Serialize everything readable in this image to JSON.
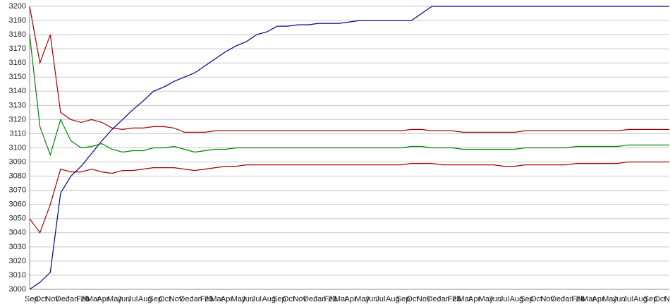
{
  "chart_data": {
    "type": "line",
    "categories": [
      "Sep",
      "Oct",
      "Nov",
      "Dec",
      "Jan 20",
      "Feb",
      "Mar",
      "Apr",
      "May",
      "Jun",
      "Jul",
      "Aug",
      "Sep",
      "Oct",
      "Nov",
      "Dec",
      "Jan 21",
      "Feb",
      "Mar",
      "Apr",
      "May",
      "Jun",
      "Jul",
      "Aug",
      "Sep",
      "Oct",
      "Nov",
      "Dec",
      "Jan 22",
      "Feb",
      "Mar",
      "Apr",
      "May",
      "Jun",
      "Jul",
      "Aug",
      "Sep",
      "Oct",
      "Nov",
      "Dec",
      "Jan 23",
      "Feb",
      "Mar",
      "Apr",
      "May",
      "Jun",
      "Jul",
      "Aug",
      "Sep",
      "Oct",
      "Nov",
      "Dec",
      "Jan 24",
      "Feb",
      "Mar",
      "Apr",
      "May",
      "Jun",
      "Jul",
      "Aug",
      "Sep",
      "Oct",
      "Nov"
    ],
    "series": [
      {
        "color": "#00008b",
        "values": [
          3000,
          3005,
          3012,
          3068,
          3080,
          3087,
          3096,
          3105,
          3113,
          3120,
          3127,
          3133,
          3140,
          3143,
          3147,
          3150,
          3153,
          3158,
          3163,
          3168,
          3172,
          3175,
          3180,
          3182,
          3186,
          3186,
          3187,
          3187,
          3188,
          3188,
          3188,
          3189,
          3190,
          3190,
          3190,
          3190,
          3190,
          3190,
          3195,
          3200,
          3200,
          3200,
          3200,
          3200,
          3200,
          3200,
          3200,
          3200,
          3200,
          3200,
          3200,
          3200,
          3200,
          3200,
          3200,
          3200,
          3200,
          3200,
          3200,
          3200,
          3200,
          3200,
          3200
        ]
      },
      {
        "color": "#008000",
        "values": [
          3180,
          3115,
          3095,
          3120,
          3105,
          3100,
          3101,
          3103,
          3099,
          3097,
          3098,
          3098,
          3100,
          3100,
          3101,
          3099,
          3097,
          3098,
          3099,
          3099,
          3100,
          3100,
          3100,
          3100,
          3100,
          3100,
          3100,
          3100,
          3100,
          3100,
          3100,
          3100,
          3100,
          3100,
          3100,
          3100,
          3100,
          3101,
          3101,
          3100,
          3100,
          3100,
          3099,
          3099,
          3099,
          3099,
          3099,
          3099,
          3100,
          3100,
          3100,
          3100,
          3100,
          3101,
          3101,
          3101,
          3101,
          3101,
          3102,
          3102,
          3102,
          3102,
          3102
        ]
      },
      {
        "color": "#a00000",
        "values": [
          3200,
          3160,
          3180,
          3125,
          3120,
          3118,
          3120,
          3118,
          3114,
          3113,
          3114,
          3114,
          3115,
          3115,
          3114,
          3111,
          3111,
          3111,
          3112,
          3112,
          3112,
          3112,
          3112,
          3112,
          3112,
          3112,
          3112,
          3112,
          3112,
          3112,
          3112,
          3112,
          3112,
          3112,
          3112,
          3112,
          3112,
          3113,
          3113,
          3112,
          3112,
          3112,
          3111,
          3111,
          3111,
          3111,
          3111,
          3111,
          3112,
          3112,
          3112,
          3112,
          3112,
          3112,
          3112,
          3112,
          3112,
          3112,
          3113,
          3113,
          3113,
          3113,
          3113
        ]
      },
      {
        "color": "#a00000",
        "values": [
          3050,
          3040,
          3060,
          3085,
          3083,
          3083,
          3085,
          3083,
          3082,
          3084,
          3084,
          3085,
          3086,
          3086,
          3086,
          3085,
          3084,
          3085,
          3086,
          3087,
          3087,
          3088,
          3088,
          3088,
          3088,
          3088,
          3088,
          3088,
          3088,
          3088,
          3088,
          3088,
          3088,
          3088,
          3088,
          3088,
          3088,
          3089,
          3089,
          3089,
          3088,
          3088,
          3088,
          3088,
          3088,
          3088,
          3087,
          3087,
          3088,
          3088,
          3088,
          3088,
          3088,
          3089,
          3089,
          3089,
          3089,
          3089,
          3090,
          3090,
          3090,
          3090,
          3090
        ]
      }
    ],
    "ylim": [
      3000,
      3200
    ],
    "yticks": [
      3000,
      3010,
      3020,
      3030,
      3040,
      3050,
      3060,
      3070,
      3080,
      3090,
      3100,
      3110,
      3120,
      3130,
      3140,
      3150,
      3160,
      3170,
      3180,
      3190,
      3200
    ],
    "grid": true
  }
}
